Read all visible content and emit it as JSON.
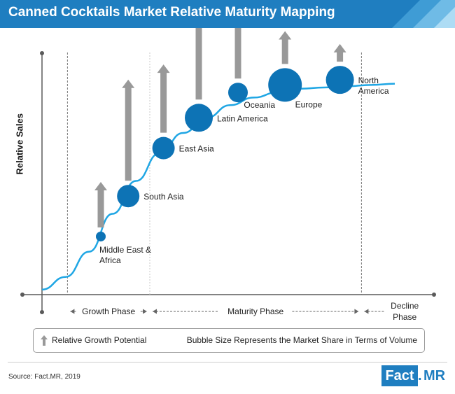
{
  "header": {
    "title": "Canned Cocktails Market Relative Maturity Mapping"
  },
  "chart_data": {
    "type": "scatter",
    "subtype": "bubble-maturity-curve",
    "title": "Canned Cocktails Market Relative Maturity Mapping",
    "ylabel": "Relative Sales",
    "xlabel": "",
    "xlim": [
      0,
      100
    ],
    "ylim": [
      0,
      100
    ],
    "grid": false,
    "curve": [
      [
        0,
        2
      ],
      [
        6,
        7
      ],
      [
        12,
        17
      ],
      [
        18,
        32
      ],
      [
        24,
        45
      ],
      [
        30,
        56
      ],
      [
        36,
        64
      ],
      [
        42,
        70
      ],
      [
        48,
        75
      ],
      [
        54,
        78
      ],
      [
        60,
        80
      ],
      [
        66,
        81.5
      ],
      [
        72,
        82
      ],
      [
        78,
        82.5
      ],
      [
        84,
        83
      ],
      [
        90,
        83.5
      ]
    ],
    "points": [
      {
        "name": "Middle East &",
        "name2": "Africa",
        "x": 15,
        "y": 23,
        "share": 7,
        "growth": 18,
        "label_pos": "below"
      },
      {
        "name": "South Asia",
        "name2": "",
        "x": 22,
        "y": 39,
        "share": 16,
        "growth": 40,
        "label_pos": "right"
      },
      {
        "name": "East Asia",
        "name2": "",
        "x": 31,
        "y": 58,
        "share": 16,
        "growth": 27,
        "label_pos": "right"
      },
      {
        "name": "Latin America",
        "name2": "",
        "x": 40,
        "y": 70,
        "share": 20,
        "growth": 34,
        "label_pos": "right"
      },
      {
        "name": "Oceania",
        "name2": "",
        "x": 50,
        "y": 80,
        "share": 14,
        "growth": 33,
        "label_pos": "below-right"
      },
      {
        "name": "Europe",
        "name2": "",
        "x": 62,
        "y": 83,
        "share": 24,
        "growth": 13,
        "label_pos": "below-right"
      },
      {
        "name": "North",
        "name2": "America",
        "x": 76,
        "y": 85,
        "share": 20,
        "growth": 7,
        "label_pos": "right"
      }
    ],
    "phases": [
      {
        "name": "Growth Phase",
        "name2": "",
        "from": 6.5,
        "to": 27.5
      },
      {
        "name": "Maturity Phase",
        "name2": "",
        "from": 27.5,
        "to": 81.5
      },
      {
        "name": "Decline",
        "name2": "Phase",
        "from": 81.5,
        "to": 100
      }
    ],
    "legend": {
      "growth_label": "Relative Growth Potential",
      "bubble_label": "Bubble Size Represents the Market Share in Terms of Volume"
    },
    "colors": {
      "bubble": "#0d73b5",
      "curve": "#1fa6e4",
      "arrow": "#999999",
      "axis": "#5a5a5a"
    }
  },
  "footer": {
    "source": "Source: Fact.MR, 2019",
    "logo_fact": "Fact",
    "logo_dot": ".",
    "logo_mr": "MR"
  }
}
